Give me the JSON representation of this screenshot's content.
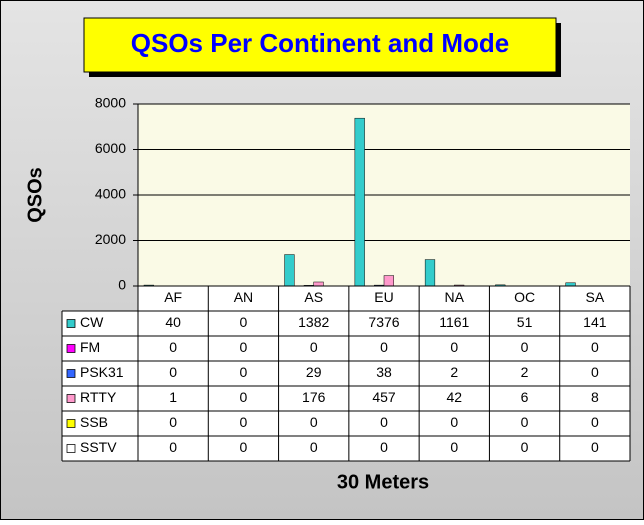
{
  "chart_data": {
    "type": "bar",
    "title": "QSOs Per Continent and Mode",
    "x_label": "30 Meters",
    "y_label": "QSOs",
    "categories": [
      "AF",
      "AN",
      "AS",
      "EU",
      "NA",
      "OC",
      "SA"
    ],
    "series": [
      {
        "name": "CW",
        "color": "#33cccc",
        "values": [
          40,
          0,
          1382,
          7376,
          1161,
          51,
          141
        ]
      },
      {
        "name": "FM",
        "color": "#ff00ff",
        "values": [
          0,
          0,
          0,
          0,
          0,
          0,
          0
        ]
      },
      {
        "name": "PSK31",
        "color": "#3366ff",
        "values": [
          0,
          0,
          29,
          38,
          2,
          2,
          0
        ]
      },
      {
        "name": "RTTY",
        "color": "#ff99cc",
        "values": [
          1,
          0,
          176,
          457,
          42,
          6,
          8
        ]
      },
      {
        "name": "SSB",
        "color": "#ffff00",
        "values": [
          0,
          0,
          0,
          0,
          0,
          0,
          0
        ]
      },
      {
        "name": "SSTV",
        "color": "#ffffff",
        "values": [
          0,
          0,
          0,
          0,
          0,
          0,
          0
        ]
      }
    ],
    "ylim": [
      0,
      8000
    ],
    "yticks": [
      0,
      2000,
      4000,
      6000,
      8000
    ],
    "grid": true
  }
}
